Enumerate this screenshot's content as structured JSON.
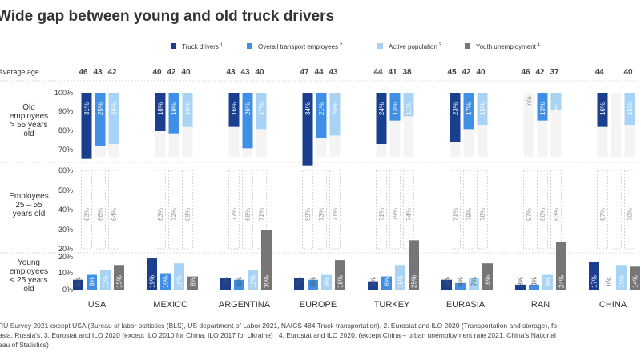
{
  "title": "Wide gap between young and old truck drivers",
  "colors": {
    "truck": "#1a3f8f",
    "transport": "#3f8fe6",
    "active": "#a9d3f4",
    "youth": "#767676",
    "text": "#333333",
    "grid": "#b8b8b8"
  },
  "legend": [
    {
      "key": "truck",
      "label": "Truck drivers",
      "sup": "1"
    },
    {
      "key": "transport",
      "label": "Overall transport employees",
      "sup": "2"
    },
    {
      "key": "active",
      "label": "Active population",
      "sup": "3"
    },
    {
      "key": "youth",
      "label": "Youth unemployment",
      "sup": "4"
    }
  ],
  "average_age_label": "Average age",
  "row_labels": {
    "old": [
      "Old",
      "employees",
      "> 55 years",
      "old"
    ],
    "mid": [
      "Employees",
      "25 – 55",
      "years old"
    ],
    "young": [
      "Young",
      "employees",
      "< 25 years",
      "old"
    ]
  },
  "chart_data": {
    "type": "bar",
    "title": "Wide gap between young and old truck drivers",
    "categories": [
      "USA",
      "MEXICO",
      "ARGENTINA",
      "EUROPE",
      "TURKEY",
      "EURASIA",
      "IRAN",
      "CHINA"
    ],
    "average_age": [
      [
        "46",
        "43",
        "42"
      ],
      [
        "40",
        "42",
        "40"
      ],
      [
        "43",
        "43",
        "40"
      ],
      [
        "47",
        "44",
        "43"
      ],
      [
        "44",
        "41",
        "38"
      ],
      [
        "45",
        "42",
        "40"
      ],
      [
        "46",
        "42",
        "37"
      ],
      [
        "44",
        "",
        "40"
      ]
    ],
    "panels": {
      "old": {
        "yticks": [
          "100%",
          "90%",
          "80%",
          "70%"
        ],
        "ylim": [
          70,
          100
        ],
        "series": [
          {
            "name": "Truck drivers",
            "values": [
              31,
              18,
              16,
              34,
              24,
              23,
              null,
              16
            ],
            "labels": [
              "31%",
              "18%",
              "16%",
              "34%",
              "24%",
              "23%",
              "n/a",
              "16%"
            ]
          },
          {
            "name": "Overall transport employees",
            "values": [
              25,
              19,
              26,
              21,
              13,
              17,
              13,
              null
            ],
            "labels": [
              "25%",
              "19%",
              "26%",
              "21%",
              "13%",
              "17%",
              "13%",
              ""
            ]
          },
          {
            "name": "Active population",
            "values": [
              24,
              16,
              17,
              20,
              11,
              15,
              8,
              15
            ],
            "labels": [
              "24%",
              "16%",
              "17%",
              "20%",
              "11%",
              "15%",
              "8%",
              "15%"
            ]
          }
        ]
      },
      "mid": {
        "yticks": [
          "60%",
          "50%",
          "40%",
          "30%",
          "20%"
        ],
        "ylim": [
          20,
          60
        ],
        "series": [
          {
            "name": "Truck drivers",
            "labels": [
              "63%",
              "63%",
              "77%",
              "59%",
              "71%",
              "71%",
              "97%",
              "67%"
            ]
          },
          {
            "name": "Overall transport employees",
            "labels": [
              "66%",
              "72%",
              "68%",
              "73%",
              "79%",
              "79%",
              "86%",
              ""
            ]
          },
          {
            "name": "Active population",
            "labels": [
              "64%",
              "69%",
              "71%",
              "71%",
              "74%",
              "78%",
              "83%",
              "70%"
            ]
          }
        ]
      },
      "young": {
        "yticks": [
          "20%",
          "10%",
          "0%"
        ],
        "ylim": [
          0,
          20
        ],
        "series": [
          {
            "name": "Truck drivers",
            "values": [
              6,
              19,
              7,
              7,
              5,
              6,
              3,
              17
            ],
            "labels": [
              "6%",
              "19%",
              "7%",
              "7%",
              "5%",
              "6%",
              "3%",
              "17%"
            ]
          },
          {
            "name": "Overall transport employees",
            "values": [
              9,
              10,
              6,
              6,
              8,
              4,
              3,
              null
            ],
            "labels": [
              "9%",
              "10%",
              "6%",
              "6%",
              "8%",
              "4%",
              "3%",
              "n/a"
            ]
          },
          {
            "name": "Active population",
            "values": [
              12,
              16,
              12,
              9,
              15,
              7,
              9,
              15
            ],
            "labels": [
              "12%",
              "16%",
              "12%",
              "9%",
              "15%",
              "7%",
              "9%",
              "15%"
            ]
          },
          {
            "name": "Youth unemployment",
            "values": [
              15,
              8,
              30,
              18,
              25,
              16,
              24,
              14
            ],
            "labels": [
              "15%",
              "8%",
              "30%",
              "18%",
              "25%",
              "16%",
              "24%",
              "14%"
            ]
          }
        ]
      }
    }
  },
  "source_lines": [
    "RU Survey 2021 except USA (Bureau of labor statistics (BLS), US department of Labor 2021, NAICS 484 Truck transportation), 2. Eurostat and ILO 2020 (Transportation and storage), fo",
    "asia, Russia's, 3. Eurostat and ILO 2020 (except ILO 2010 for China, ILO 2017 for Ukraine) , 4. Eurostat and ILO 2020, (except China –  urban unemployment rate 2021, China's National",
    "eau of Statistics)"
  ]
}
